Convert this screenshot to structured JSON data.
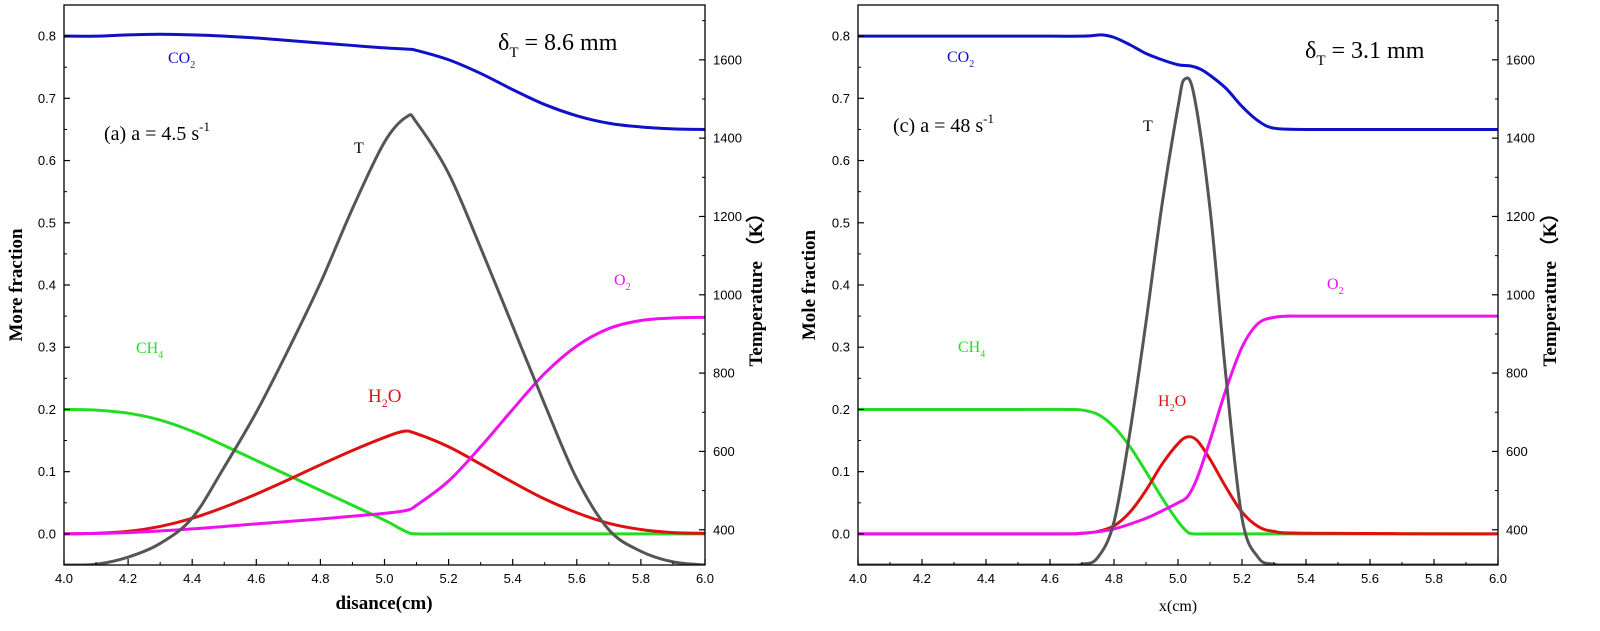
{
  "chart_data": [
    {
      "type": "line",
      "panel_label": "(a) a = 4.5 s",
      "panel_label_sup": "-1",
      "delta_label": "δ",
      "delta_sub": "T",
      "delta_value": " = 8.6 mm",
      "xlabel": "disance(cm)",
      "ylabel": "More fraction",
      "y2label": "Temperature （K）",
      "xlim": [
        4.0,
        6.0
      ],
      "ylim": [
        -0.05,
        0.85
      ],
      "y2lim": [
        310,
        1740
      ],
      "xticks": [
        "4.0",
        "4.2",
        "4.4",
        "4.6",
        "4.8",
        "5.0",
        "5.2",
        "5.4",
        "5.6",
        "5.8",
        "6.0"
      ],
      "yticks": [
        "0.0",
        "0.1",
        "0.2",
        "0.3",
        "0.4",
        "0.5",
        "0.6",
        "0.7",
        "0.8"
      ],
      "y2ticks": [
        "400",
        "600",
        "800",
        "1000",
        "1200",
        "1400",
        "1600"
      ],
      "series": [
        {
          "name": "CO2",
          "label_main": "CO",
          "label_sub": "2",
          "color": "#1010c8",
          "axis": "left",
          "x": [
            4.0,
            4.1,
            4.2,
            4.3,
            4.4,
            4.5,
            4.6,
            4.7,
            4.8,
            4.9,
            5.0,
            5.07,
            5.1,
            5.2,
            5.3,
            5.4,
            5.5,
            5.6,
            5.7,
            5.8,
            5.9,
            6.0
          ],
          "y": [
            0.8,
            0.8,
            0.802,
            0.803,
            0.802,
            0.8,
            0.797,
            0.793,
            0.789,
            0.785,
            0.781,
            0.779,
            0.777,
            0.762,
            0.74,
            0.714,
            0.69,
            0.672,
            0.66,
            0.654,
            0.651,
            0.65
          ]
        },
        {
          "name": "CH4",
          "label_main": "CH",
          "label_sub": "4",
          "color": "#22dd22",
          "axis": "left",
          "x": [
            4.0,
            4.1,
            4.2,
            4.3,
            4.4,
            4.5,
            4.6,
            4.7,
            4.8,
            4.9,
            5.0,
            5.07,
            5.1,
            5.2,
            5.4,
            5.6,
            5.8,
            6.0
          ],
          "y": [
            0.2,
            0.199,
            0.194,
            0.183,
            0.165,
            0.142,
            0.118,
            0.094,
            0.07,
            0.046,
            0.022,
            0.003,
            0.0,
            0.0,
            0.0,
            0.0,
            0.0,
            0.0
          ]
        },
        {
          "name": "H2O",
          "label_main": "H",
          "label_sub": "2",
          "label_tail": "O",
          "color": "#dd1111",
          "axis": "left",
          "x": [
            4.0,
            4.1,
            4.2,
            4.3,
            4.4,
            4.5,
            4.6,
            4.7,
            4.8,
            4.9,
            5.0,
            5.06,
            5.1,
            5.2,
            5.3,
            5.4,
            5.5,
            5.6,
            5.7,
            5.8,
            5.9,
            6.0
          ],
          "y": [
            0.0,
            0.001,
            0.004,
            0.012,
            0.025,
            0.043,
            0.064,
            0.087,
            0.111,
            0.134,
            0.155,
            0.165,
            0.161,
            0.14,
            0.112,
            0.083,
            0.056,
            0.034,
            0.017,
            0.007,
            0.002,
            0.001
          ]
        },
        {
          "name": "O2",
          "label_main": "O",
          "label_sub": "2",
          "color": "#ee11ee",
          "axis": "left",
          "x": [
            4.0,
            4.2,
            4.4,
            4.6,
            4.8,
            5.0,
            5.07,
            5.1,
            5.2,
            5.3,
            5.4,
            5.5,
            5.6,
            5.7,
            5.8,
            5.9,
            6.0
          ],
          "y": [
            0.0,
            0.002,
            0.008,
            0.016,
            0.024,
            0.033,
            0.038,
            0.046,
            0.085,
            0.14,
            0.2,
            0.258,
            0.302,
            0.33,
            0.343,
            0.347,
            0.348
          ]
        },
        {
          "name": "T",
          "label_main": "T",
          "color": "#555555",
          "axis": "right",
          "x": [
            4.0,
            4.1,
            4.2,
            4.3,
            4.4,
            4.5,
            4.6,
            4.7,
            4.8,
            4.9,
            5.0,
            5.07,
            5.1,
            5.2,
            5.3,
            5.4,
            5.5,
            5.6,
            5.7,
            5.8,
            5.9,
            6.0
          ],
          "y": [
            310,
            312,
            330,
            365,
            430,
            560,
            700,
            860,
            1030,
            1220,
            1390,
            1455,
            1440,
            1310,
            1120,
            920,
            720,
            530,
            400,
            345,
            318,
            310
          ]
        }
      ]
    },
    {
      "type": "line",
      "panel_label": "(c) a = 48 s",
      "panel_label_sup": "-1",
      "delta_label": "δ",
      "delta_sub": "T",
      "delta_value": " = 3.1 mm",
      "xlabel": "x(cm)",
      "ylabel": "Mole fraction",
      "y2label": "Temperature （K）",
      "xlim": [
        4.0,
        6.0
      ],
      "ylim": [
        -0.05,
        0.85
      ],
      "y2lim": [
        310,
        1740
      ],
      "xticks": [
        "4.0",
        "4.2",
        "4.4",
        "4.6",
        "4.8",
        "5.0",
        "5.2",
        "5.4",
        "5.6",
        "5.8",
        "6.0"
      ],
      "yticks": [
        "0.0",
        "0.1",
        "0.2",
        "0.3",
        "0.4",
        "0.5",
        "0.6",
        "0.7",
        "0.8"
      ],
      "y2ticks": [
        "400",
        "600",
        "800",
        "1000",
        "1200",
        "1400",
        "1600"
      ],
      "series": [
        {
          "name": "CO2",
          "label_main": "CO",
          "label_sub": "2",
          "color": "#1010c8",
          "axis": "left",
          "x": [
            4.0,
            4.5,
            4.7,
            4.76,
            4.8,
            4.85,
            4.9,
            4.95,
            5.0,
            5.04,
            5.07,
            5.1,
            5.15,
            5.2,
            5.25,
            5.3,
            5.4,
            5.6,
            6.0
          ],
          "y": [
            0.8,
            0.8,
            0.8,
            0.802,
            0.798,
            0.786,
            0.772,
            0.762,
            0.754,
            0.752,
            0.747,
            0.737,
            0.716,
            0.687,
            0.664,
            0.652,
            0.65,
            0.65,
            0.65
          ]
        },
        {
          "name": "CH4",
          "label_main": "CH",
          "label_sub": "4",
          "color": "#22dd22",
          "axis": "left",
          "x": [
            4.0,
            4.5,
            4.65,
            4.7,
            4.75,
            4.8,
            4.85,
            4.9,
            4.95,
            5.0,
            5.03,
            5.05,
            5.1,
            5.5,
            6.0
          ],
          "y": [
            0.2,
            0.2,
            0.2,
            0.199,
            0.192,
            0.172,
            0.14,
            0.1,
            0.058,
            0.02,
            0.003,
            0.0,
            0.0,
            0.0,
            0.0
          ]
        },
        {
          "name": "H2O",
          "label_main": "H",
          "label_sub": "2",
          "label_tail": "O",
          "color": "#dd1111",
          "axis": "left",
          "x": [
            4.0,
            4.6,
            4.7,
            4.75,
            4.8,
            4.85,
            4.9,
            4.95,
            5.0,
            5.03,
            5.06,
            5.1,
            5.15,
            5.2,
            5.25,
            5.3,
            5.4,
            6.0
          ],
          "y": [
            0.0,
            0.0,
            0.001,
            0.004,
            0.013,
            0.035,
            0.07,
            0.112,
            0.145,
            0.156,
            0.15,
            0.12,
            0.075,
            0.035,
            0.012,
            0.004,
            0.001,
            0.0
          ]
        },
        {
          "name": "O2",
          "label_main": "O",
          "label_sub": "2",
          "color": "#ee11ee",
          "axis": "left",
          "x": [
            4.0,
            4.6,
            4.7,
            4.8,
            4.9,
            4.95,
            5.0,
            5.03,
            5.06,
            5.1,
            5.15,
            5.2,
            5.25,
            5.3,
            5.35,
            5.4,
            6.0
          ],
          "y": [
            0.0,
            0.0,
            0.001,
            0.008,
            0.025,
            0.037,
            0.05,
            0.06,
            0.09,
            0.15,
            0.232,
            0.3,
            0.338,
            0.348,
            0.35,
            0.35,
            0.35
          ]
        },
        {
          "name": "T",
          "label_main": "T",
          "color": "#555555",
          "axis": "right",
          "x": [
            4.0,
            4.6,
            4.7,
            4.75,
            4.8,
            4.85,
            4.9,
            4.95,
            5.0,
            5.02,
            5.05,
            5.1,
            5.15,
            5.2,
            5.25,
            5.3,
            5.4,
            6.0
          ],
          "y": [
            310,
            310,
            312,
            330,
            420,
            650,
            930,
            1230,
            1480,
            1550,
            1510,
            1220,
            790,
            430,
            330,
            312,
            310,
            310
          ]
        }
      ]
    }
  ]
}
